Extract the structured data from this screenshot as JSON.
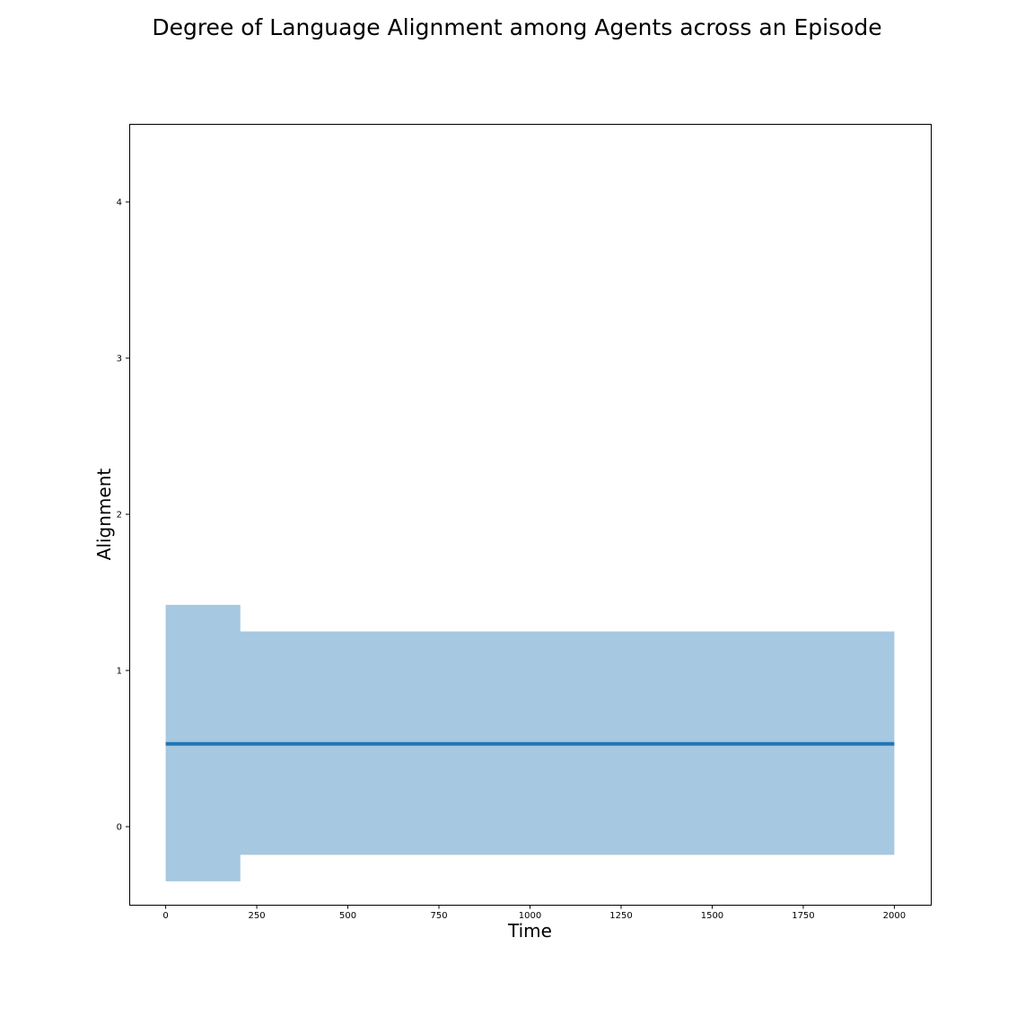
{
  "chart_data": {
    "type": "line",
    "title": "Degree of Language Alignment among Agents across an Episode",
    "xlabel": "Time",
    "ylabel": "Alignment",
    "xlim": [
      -100,
      2100
    ],
    "ylim": [
      -0.5,
      4.5
    ],
    "x_ticks": [
      0,
      250,
      500,
      750,
      1000,
      1250,
      1500,
      1750,
      2000
    ],
    "y_ticks": [
      0,
      1,
      2,
      3,
      4
    ],
    "grid": false,
    "legend": "none",
    "series": [
      {
        "x": [
          0,
          205,
          205,
          2000
        ],
        "mean": [
          0.53,
          0.53,
          0.53,
          0.53
        ],
        "lower": [
          -0.35,
          -0.35,
          -0.18,
          -0.18
        ],
        "upper": [
          1.42,
          1.42,
          1.25,
          1.25
        ],
        "color": "#1f77b4",
        "band_color": "#a6c8e0"
      }
    ]
  }
}
